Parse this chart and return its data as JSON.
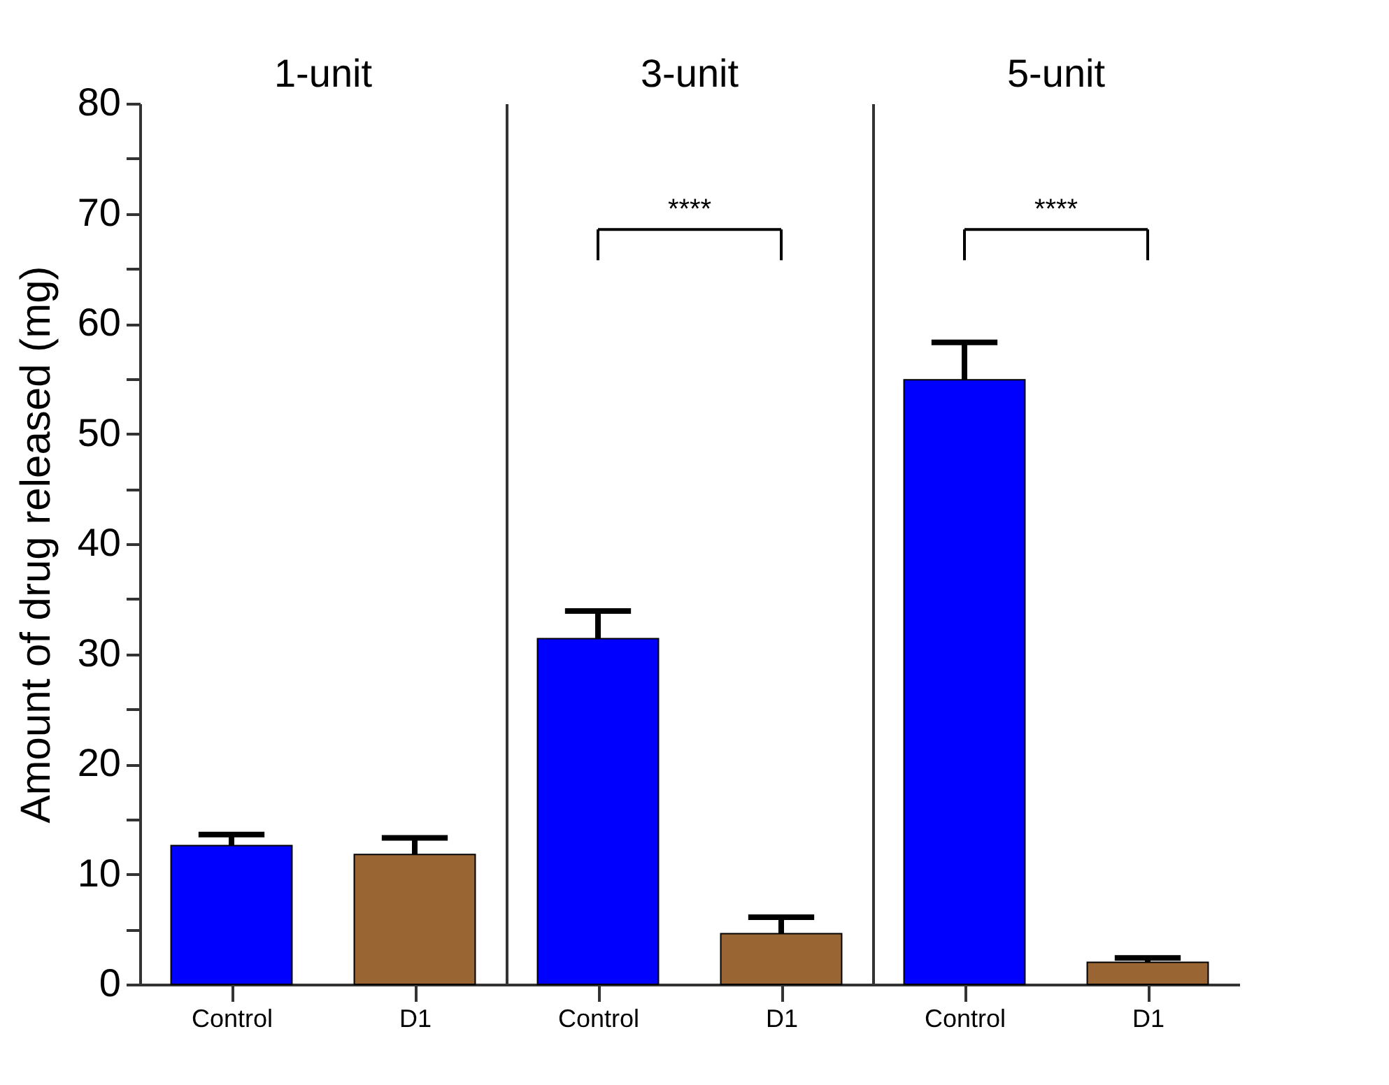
{
  "chart_data": [
    {
      "type": "bar",
      "title": "1-unit",
      "ylabel": "Amount of drug released (mg)",
      "categories": [
        "Control",
        "D1"
      ],
      "values": [
        12.6,
        11.8
      ],
      "colors": [
        "#0000ff",
        "#996633"
      ],
      "errors": [
        [
          12.6,
          13.6
        ],
        [
          11.8,
          13.3
        ]
      ],
      "ylim": [
        0,
        80
      ],
      "yticks": [
        0,
        {
          "value": 5,
          "label": null
        },
        10,
        {
          "value": 15,
          "label": null
        },
        20,
        {
          "value": 25,
          "label": null
        },
        30,
        {
          "value": 35,
          "label": null
        },
        40,
        {
          "value": 45,
          "label": null
        },
        50,
        {
          "value": 55,
          "label": null
        },
        60,
        {
          "value": 65,
          "label": null
        },
        70,
        {
          "value": 75,
          "label": null
        },
        80
      ]
    },
    {
      "type": "bar",
      "title": "3-unit",
      "categories": [
        "Control",
        "D1"
      ],
      "values": [
        31.4,
        4.6
      ],
      "colors": [
        "#0000ff",
        "#996633"
      ],
      "errors": [
        [
          31.4,
          33.9
        ],
        [
          4.6,
          6.1
        ]
      ],
      "ylim": [
        0,
        80
      ],
      "tick_labels": "x",
      "annotations": [
        "****"
      ]
    },
    {
      "type": "bar",
      "title": "5-unit",
      "categories": [
        "Control",
        "D1"
      ],
      "values": [
        54.9,
        2.0
      ],
      "colors": [
        "#0000ff",
        "#996633"
      ],
      "errors": [
        [
          54.9,
          58.3
        ],
        [
          2.0,
          2.4
        ]
      ],
      "ylim": [
        0,
        80
      ],
      "tick_labels": "x",
      "annotations": [
        "****"
      ]
    }
  ]
}
